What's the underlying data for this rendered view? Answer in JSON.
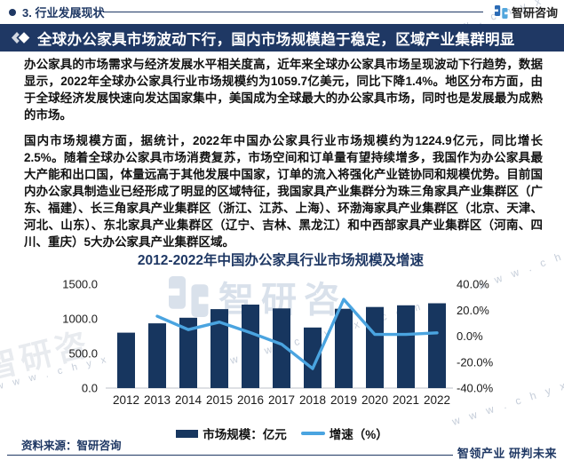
{
  "colors": {
    "navy": "#1F3864",
    "bar": "#17365F",
    "line": "#4AA4E0",
    "baseline": "#C9CDD4",
    "banner_bg": "#1F3864",
    "banner_text": "#FFFFFF",
    "logo_dark": "#2B6BB5",
    "logo_light": "#53A7DD"
  },
  "header": {
    "section_title": "3. 行业发展现状",
    "brand": "智研咨询"
  },
  "banner": {
    "text": "全球办公家具市场波动下行，国内市场规模趋于稳定，区域产业集群明显"
  },
  "paragraphs": {
    "p1": "办公家具的市场需求与经济发展水平相关度高，近年来全球办公家具市场呈现波动下行趋势，数据显示，2022年全球办公家具行业市场规模约为1059.7亿美元，同比下降1.4%。地区分布方面，由于全球经济发展快速向发达国家集中，美国成为全球最大的办公家具市场，同时也是发展最为成熟的市场。",
    "p2": "国内市场规模方面，据统计，2022年中国办公家具行业市场规模约为1224.9亿元，同比增长2.5%。随着全球办公家具市场消费复苏，市场空间和订单量有望持续增多，我国作为办公家具最大产能和出口国，体量远高于其他发展中国家，订单的流入将强化产业链协同和规模优势。目前国内办公家具制造业已经形成了明显的区域特征，我国家具产业集群分为珠三角家具产业集群区（广东、福建）、长三角家具产业集群区（浙江、江苏、上海）、环渤海家具产业集群区（北京、天津、河北、山东）、东北家具产业集群区（辽宁、吉林、黑龙江）和中西部家具产业集群区（河南、四川、重庆）5大办公家具产业集群区域。"
  },
  "chart_data": {
    "type": "bar",
    "title": "2012-2022年中国办公家具行业市场规模及增速",
    "categories": [
      "2012",
      "2013",
      "2014",
      "2015",
      "2016",
      "2017",
      "2018",
      "2019",
      "2020",
      "2021",
      "2022"
    ],
    "series": [
      {
        "name": "市场规模：亿元",
        "kind": "bar",
        "values": [
          800,
          935,
          1015,
          1140,
          1205,
          1150,
          875,
          1145,
          1170,
          1195,
          1224.9
        ]
      },
      {
        "name": "增速（%）",
        "kind": "line",
        "values": [
          null,
          15.3,
          5.0,
          10.8,
          2.7,
          -6.2,
          -25.0,
          28.3,
          1.3,
          1.3,
          2.5
        ]
      }
    ],
    "y_left": {
      "max": 1500,
      "min": 0,
      "ticks": [
        {
          "v": 1500,
          "label": "1500.0"
        },
        {
          "v": 1000,
          "label": "1000.0"
        },
        {
          "v": 500,
          "label": "500.0"
        },
        {
          "v": 0,
          "label": "0.0"
        }
      ]
    },
    "y_right": {
      "max": 40,
      "min": -40,
      "ticks": [
        {
          "v": 40,
          "label": "40.0%"
        },
        {
          "v": 20,
          "label": "20.0%"
        },
        {
          "v": 0,
          "label": "0.0%"
        },
        {
          "v": -20,
          "label": "-20.0%"
        },
        {
          "v": -40,
          "label": "-40.0%"
        }
      ]
    },
    "grid": false,
    "legend_position": "bottom"
  },
  "footer": {
    "source": "资料来源：智研咨询",
    "slogan": "智领产业 研判未来"
  },
  "watermarks": {
    "brand": "智研咨询",
    "brand_short": "智研咨",
    "domain_letters": "w w w . c h y x x . c o m",
    "domain_short": "w w w . c h y x"
  }
}
